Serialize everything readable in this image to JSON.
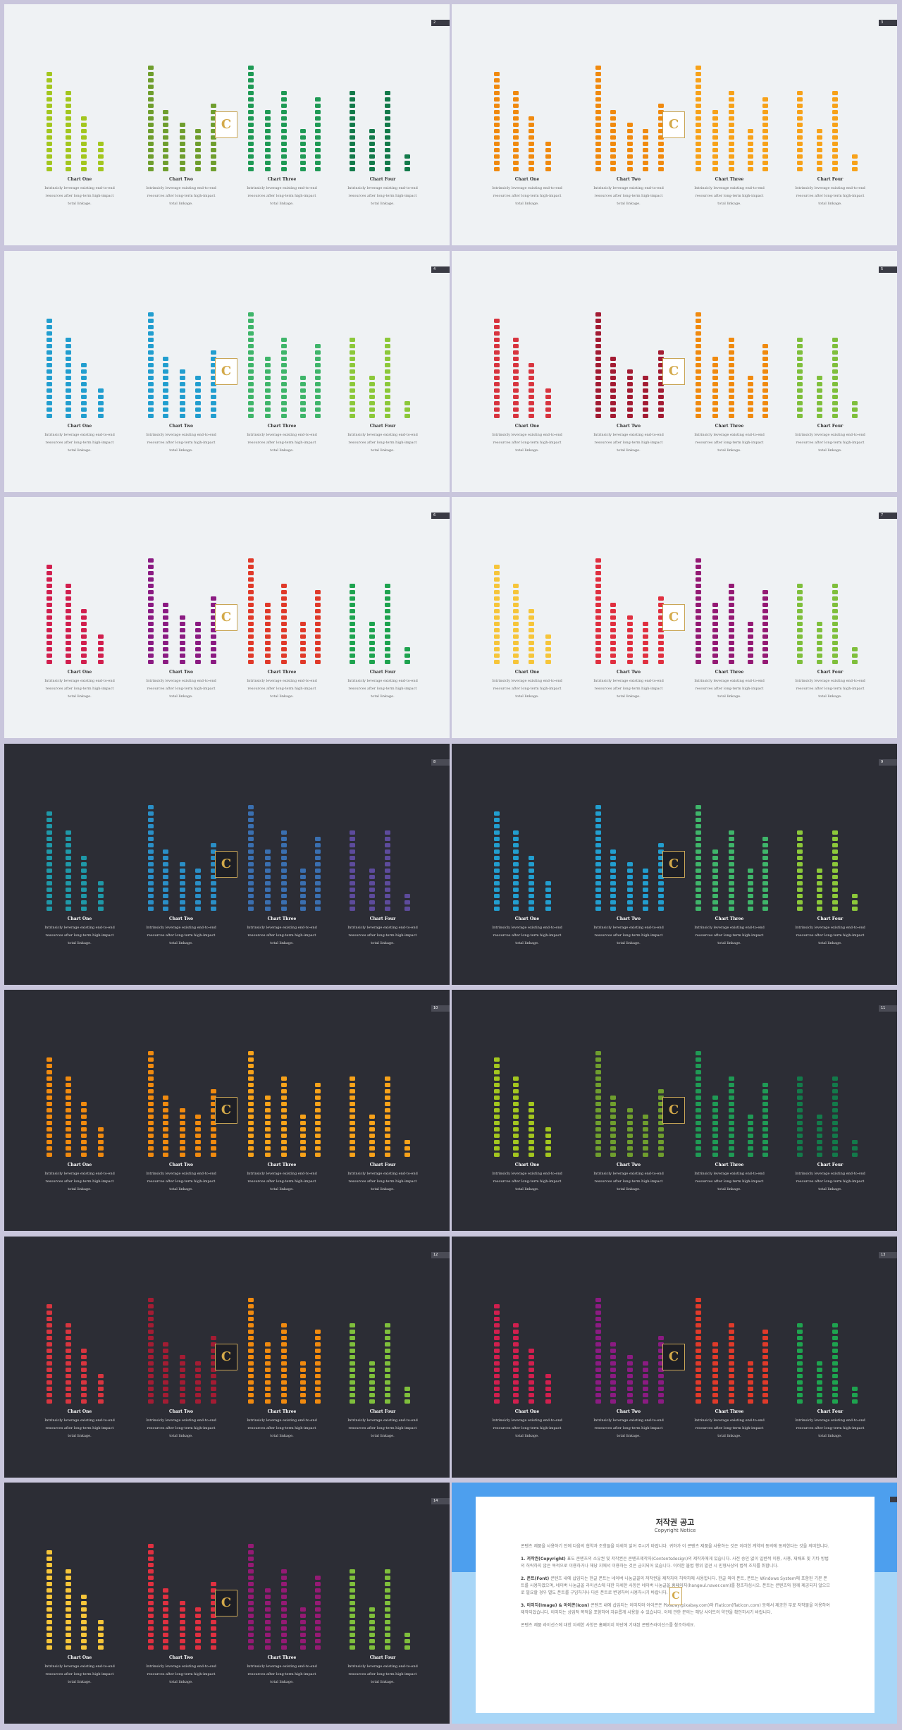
{
  "charts": [
    {
      "title": "Chart One",
      "desc": "Intrinsicly leverage existing end-to-end resources after long-term high-impact total linkage."
    },
    {
      "title": "Chart Two",
      "desc": "Intrinsicly leverage existing end-to-end resources after long-term high-impact total linkage."
    },
    {
      "title": "Chart Three",
      "desc": "Intrinsicly leverage existing end-to-end resources after long-term high-impact total linkage."
    },
    {
      "title": "Chart Four",
      "desc": "Intrinsicly leverage existing end-to-end resources after long-term high-impact total linkage."
    }
  ],
  "chart_data": {
    "type": "bar",
    "categories": [
      "Chart One",
      "Chart Two",
      "Chart Three",
      "Chart Four"
    ],
    "groups": [
      [
        16,
        13,
        9,
        5
      ],
      [
        17,
        10,
        8,
        7,
        11
      ],
      [
        17,
        10,
        13,
        7,
        12
      ],
      [
        13,
        7,
        13,
        3
      ]
    ]
  },
  "slides": [
    {
      "page": "2",
      "theme": "light",
      "colors": [
        "#a3c61f",
        "#6f9e2e",
        "#1f9a55",
        "#137a4a"
      ]
    },
    {
      "page": "3",
      "theme": "light",
      "colors": [
        "#f08a0f",
        "#f08a0f",
        "#f7a21a",
        "#f7a21a"
      ]
    },
    {
      "page": "4",
      "theme": "light",
      "colors": [
        "#229ecf",
        "#229ecf",
        "#3fb56a",
        "#8cc83a"
      ]
    },
    {
      "page": "5",
      "theme": "light",
      "colors": [
        "#d8353f",
        "#a31c33",
        "#f08a0f",
        "#7fbf3c"
      ]
    },
    {
      "page": "6",
      "theme": "light",
      "colors": [
        "#d11f4e",
        "#8b1b82",
        "#e03a2a",
        "#1ea34f"
      ]
    },
    {
      "page": "7",
      "theme": "light",
      "colors": [
        "#f6c53a",
        "#e03040",
        "#941a74",
        "#7fbf3c"
      ]
    },
    {
      "page": "8",
      "theme": "dark",
      "colors": [
        "#1f98a8",
        "#2a8fc7",
        "#3a6fb0",
        "#5d4b9c"
      ]
    },
    {
      "page": "9",
      "theme": "dark",
      "colors": [
        "#229ecf",
        "#229ecf",
        "#3fb56a",
        "#8cc83a"
      ]
    },
    {
      "page": "10",
      "theme": "dark",
      "colors": [
        "#f08a0f",
        "#f08a0f",
        "#f7a21a",
        "#f7a21a"
      ]
    },
    {
      "page": "11",
      "theme": "dark",
      "colors": [
        "#a3c61f",
        "#6f9e2e",
        "#1f9a55",
        "#137a4a"
      ]
    },
    {
      "page": "12",
      "theme": "dark",
      "colors": [
        "#d8353f",
        "#a31c33",
        "#f08a0f",
        "#7fbf3c"
      ]
    },
    {
      "page": "13",
      "theme": "dark",
      "colors": [
        "#d11f4e",
        "#8b1b82",
        "#e03a2a",
        "#1ea34f"
      ]
    },
    {
      "page": "14",
      "theme": "dark",
      "colors": [
        "#f6c53a",
        "#e03040",
        "#941a74",
        "#7fbf3c"
      ]
    }
  ],
  "copyright": {
    "title": "저작권 공고",
    "subtitle": "Copyright Notice",
    "intro": "콘텐츠 제품을 사용하기 전에 다음의 협약과 조항들을 자세히 읽어 주시기 바랍니다. 귀하가 이 콘텐츠 제품을 사용하는 것은 이러한 계약의 동의에 동의한다는 것을 의미합니다.",
    "p1_head": "1. 저작권(Copyright)",
    "p1": " 표도 콘텐츠의 소유권 및 저작권은 콘텐츠제작자(Contentsdesign)의 제작자에게 있습니다. 사전 승인 없이 일반적 이용, 사용, 재배포 및 기타 방법의 허락하지 않은 목적으로 이용하거나 해당 지에서 이용하는 것은 금지되어 있습니다. 이러한 불법 행위 발견 시 민형사상의 법적 조치를 취합니다.",
    "p2_head": "2. 폰트(Font)",
    "p2": " 콘텐츠 내에 삽입되는 한글 폰트는 네이버 나눔글꼴의 저작권을 제작자의 허락하에 사용합니다. 한글 외의 폰트, 폰트는 Windows System에 포함된 기본 폰트를 사용하였으며, 네이버 나눔글꼴 라이선스에 대한 자세한 사항은 네이버 나눔글꼴 홈페이지(hangeul.naver.com)를 참조하십시오. 폰트는 콘텐츠와 함께 제공되지 않으므로 필요할 경우 별도 폰트를 구입하거나 다른 폰트로 변경하여 사용하시기 바랍니다.",
    "p3_head": "3. 이미지(Image) & 아이콘(Icon)",
    "p3": " 콘텐츠 내에 삽입되는 이미지와 아이콘은 Pixabay(pixabay.com)와 Flaticon(flaticon.com) 등에서 제공한 무료 저작물을 이용하여 제작되었습니다. 이미지는 상업적 목적을 포함하여 자유롭게 사용할 수 있습니다. 이에 관한 문의는 해당 사이트의 약관을 확인하시기 바랍니다.",
    "outro": "콘텐츠 제품 라이선스에 대한 자세한 사항은 홈페이지 하단에 기재된 콘텐츠라이선스를 참조하세요."
  }
}
